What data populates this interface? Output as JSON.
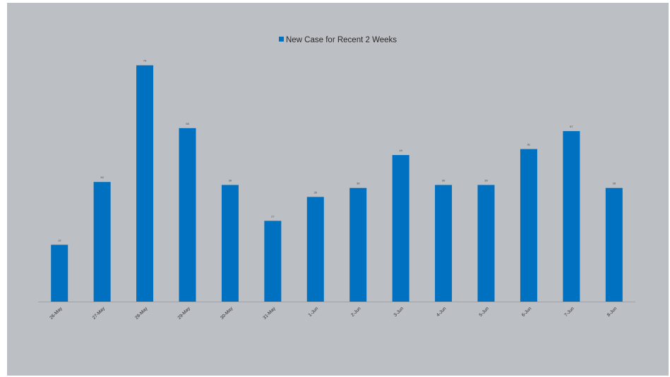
{
  "chart_data": {
    "type": "bar",
    "title": "",
    "xlabel": "",
    "ylabel": "",
    "categories": [
      "26-May",
      "27-May",
      "28-May",
      "29-May",
      "30-May",
      "31-May",
      "1-Jun",
      "2-Jun",
      "3-Jun",
      "4-Jun",
      "5-Jun",
      "6-Jun",
      "7-Jun",
      "8-Jun"
    ],
    "series": [
      {
        "name": "New Case for Recent 2 Weeks",
        "values": [
          19,
          40,
          79,
          58,
          39,
          27,
          35,
          38,
          49,
          39,
          39,
          51,
          57,
          38
        ],
        "data_labels": [
          "19",
          "40",
          "79",
          "58",
          "39",
          "27",
          "35",
          "38",
          "49",
          "39",
          "39",
          "51",
          "57",
          "38"
        ],
        "color": "#0070c0"
      }
    ],
    "ylim": [
      0,
      90
    ],
    "grid": false,
    "legend_position": "top-center",
    "background_color": "#bcbfc3"
  }
}
